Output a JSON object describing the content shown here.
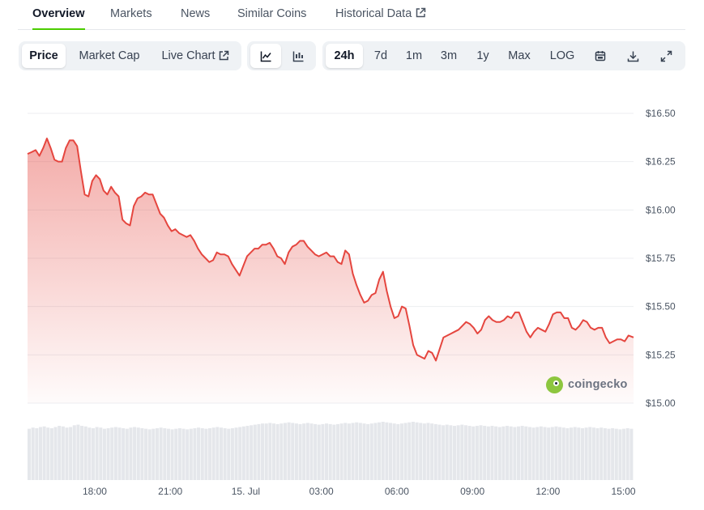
{
  "tabs": [
    {
      "label": "Overview",
      "active": true
    },
    {
      "label": "Markets",
      "active": false
    },
    {
      "label": "News",
      "active": false
    },
    {
      "label": "Similar Coins",
      "active": false
    },
    {
      "label": "Historical Data",
      "active": false,
      "external": true
    }
  ],
  "toolbar": {
    "metric_buttons": [
      "Price",
      "Market Cap",
      "Live Chart"
    ],
    "selected_metric": "Price",
    "chart_style_icons": [
      "line-chart-icon",
      "candlestick-chart-icon"
    ],
    "selected_style": "line-chart-icon",
    "ranges": [
      "24h",
      "7d",
      "1m",
      "3m",
      "1y",
      "Max",
      "LOG"
    ],
    "selected_range": "24h",
    "tool_icons": [
      "calendar-icon",
      "download-icon",
      "fullscreen-icon"
    ]
  },
  "watermark": {
    "text": "coingecko"
  },
  "colors": {
    "line": "#e5463f",
    "accent": "#4bcc00",
    "volume": "#e5e7eb"
  },
  "chart_data": {
    "type": "area",
    "title": "",
    "xlabel": "",
    "ylabel": "",
    "ylim": [
      15.0,
      16.5
    ],
    "yticks": [
      "$16.50",
      "$16.25",
      "$16.00",
      "$15.75",
      "$15.50",
      "$15.25",
      "$15.00"
    ],
    "ytick_values": [
      16.5,
      16.25,
      16.0,
      15.75,
      15.5,
      15.25,
      15.0
    ],
    "xticks": [
      "18:00",
      "21:00",
      "15. Jul",
      "03:00",
      "06:00",
      "09:00",
      "12:00",
      "15:00"
    ],
    "xtick_hours": [
      18,
      21,
      24,
      27,
      30,
      33,
      36,
      39
    ],
    "xlim_hours": [
      15.33,
      39.4
    ],
    "grid": true,
    "series": [
      {
        "x_hours": [
          15.33,
          15.5,
          15.65,
          15.8,
          15.95,
          16.1,
          16.25,
          16.4,
          16.55,
          16.7,
          16.85,
          17.0,
          17.15,
          17.3,
          17.45,
          17.6,
          17.75,
          17.9,
          18.05,
          18.2,
          18.35,
          18.5,
          18.65,
          18.8,
          18.95,
          19.1,
          19.25,
          19.4,
          19.55,
          19.7,
          19.85,
          20.0,
          20.15,
          20.3,
          20.45,
          20.6,
          20.75,
          20.9,
          21.05,
          21.2,
          21.35,
          21.5,
          21.65,
          21.8,
          21.95,
          22.1,
          22.25,
          22.4,
          22.55,
          22.7,
          22.85,
          23.0,
          23.15,
          23.3,
          23.45,
          23.6,
          23.75,
          23.9,
          24.05,
          24.2,
          24.35,
          24.5,
          24.65,
          24.8,
          24.95,
          25.1,
          25.25,
          25.4,
          25.55,
          25.7,
          25.85,
          26.0,
          26.15,
          26.3,
          26.45,
          26.6,
          26.75,
          26.9,
          27.05,
          27.2,
          27.35,
          27.5,
          27.65,
          27.8,
          27.95,
          28.1,
          28.25,
          28.4,
          28.55,
          28.7,
          28.85,
          29.0,
          29.15,
          29.3,
          29.45,
          29.6,
          29.75,
          29.9,
          30.05,
          30.2,
          30.35,
          30.5,
          30.65,
          30.8,
          30.95,
          31.1,
          31.25,
          31.4,
          31.55,
          31.7,
          31.85,
          32.0,
          32.15,
          32.3,
          32.45,
          32.6,
          32.75,
          32.9,
          33.05,
          33.2,
          33.35,
          33.5,
          33.65,
          33.8,
          33.95,
          34.1,
          34.25,
          34.4,
          34.55,
          34.7,
          34.85,
          35.0,
          35.15,
          35.3,
          35.45,
          35.6,
          35.75,
          35.9,
          36.05,
          36.2,
          36.35,
          36.5,
          36.65,
          36.8,
          36.95,
          37.1,
          37.25,
          37.4,
          37.55,
          37.7,
          37.85,
          38.0,
          38.15,
          38.3,
          38.45,
          38.6,
          38.75,
          38.9,
          39.05,
          39.2,
          39.4
        ],
        "values": [
          16.29,
          16.3,
          16.31,
          16.28,
          16.32,
          16.37,
          16.32,
          16.26,
          16.25,
          16.25,
          16.32,
          16.36,
          16.36,
          16.33,
          16.2,
          16.08,
          16.07,
          16.15,
          16.18,
          16.16,
          16.1,
          16.08,
          16.12,
          16.09,
          16.07,
          15.95,
          15.93,
          15.92,
          16.02,
          16.06,
          16.07,
          16.09,
          16.08,
          16.08,
          16.03,
          15.98,
          15.96,
          15.92,
          15.89,
          15.9,
          15.88,
          15.87,
          15.86,
          15.87,
          15.84,
          15.8,
          15.77,
          15.75,
          15.73,
          15.74,
          15.78,
          15.77,
          15.77,
          15.76,
          15.72,
          15.69,
          15.66,
          15.71,
          15.76,
          15.78,
          15.8,
          15.8,
          15.82,
          15.82,
          15.83,
          15.8,
          15.76,
          15.75,
          15.72,
          15.78,
          15.81,
          15.82,
          15.84,
          15.84,
          15.81,
          15.79,
          15.77,
          15.76,
          15.77,
          15.78,
          15.76,
          15.76,
          15.73,
          15.72,
          15.79,
          15.77,
          15.67,
          15.61,
          15.56,
          15.52,
          15.53,
          15.56,
          15.57,
          15.64,
          15.68,
          15.58,
          15.5,
          15.44,
          15.45,
          15.5,
          15.49,
          15.4,
          15.3,
          15.25,
          15.24,
          15.23,
          15.27,
          15.26,
          15.22,
          15.28,
          15.34,
          15.35,
          15.36,
          15.37,
          15.38,
          15.4,
          15.42,
          15.41,
          15.39,
          15.36,
          15.38,
          15.43,
          15.45,
          15.43,
          15.42,
          15.42,
          15.43,
          15.45,
          15.44,
          15.47,
          15.47,
          15.42,
          15.37,
          15.34,
          15.37,
          15.39,
          15.38,
          15.37,
          15.41,
          15.46,
          15.47,
          15.47,
          15.44,
          15.44,
          15.39,
          15.38,
          15.4,
          15.43,
          15.42,
          15.39,
          15.38,
          15.39,
          15.39,
          15.34,
          15.31,
          15.32,
          15.33,
          15.33,
          15.32,
          15.35,
          15.34
        ]
      }
    ],
    "volume_relative": [
      0.88,
      0.9,
      0.89,
      0.91,
      0.92,
      0.9,
      0.89,
      0.91,
      0.93,
      0.92,
      0.9,
      0.91,
      0.94,
      0.95,
      0.93,
      0.92,
      0.9,
      0.89,
      0.91,
      0.9,
      0.88,
      0.89,
      0.9,
      0.91,
      0.9,
      0.89,
      0.88,
      0.9,
      0.91,
      0.9,
      0.89,
      0.88,
      0.87,
      0.88,
      0.89,
      0.9,
      0.89,
      0.88,
      0.87,
      0.88,
      0.89,
      0.88,
      0.87,
      0.88,
      0.89,
      0.9,
      0.89,
      0.88,
      0.89,
      0.9,
      0.91,
      0.9,
      0.89,
      0.88,
      0.89,
      0.9,
      0.91,
      0.92,
      0.93,
      0.94,
      0.95,
      0.96,
      0.97,
      0.97,
      0.98,
      0.97,
      0.96,
      0.97,
      0.98,
      0.99,
      0.98,
      0.97,
      0.96,
      0.97,
      0.98,
      0.97,
      0.96,
      0.95,
      0.96,
      0.97,
      0.96,
      0.95,
      0.96,
      0.97,
      0.98,
      0.97,
      0.98,
      0.99,
      0.98,
      0.97,
      0.96,
      0.97,
      0.98,
      0.99,
      1.0,
      0.99,
      0.98,
      0.97,
      0.96,
      0.97,
      0.98,
      0.99,
      1.0,
      0.99,
      0.98,
      0.97,
      0.98,
      0.97,
      0.96,
      0.95,
      0.94,
      0.95,
      0.94,
      0.93,
      0.94,
      0.95,
      0.94,
      0.93,
      0.92,
      0.93,
      0.94,
      0.93,
      0.92,
      0.93,
      0.92,
      0.91,
      0.92,
      0.93,
      0.92,
      0.91,
      0.92,
      0.93,
      0.92,
      0.91,
      0.9,
      0.91,
      0.92,
      0.91,
      0.9,
      0.91,
      0.92,
      0.91,
      0.9,
      0.89,
      0.9,
      0.91,
      0.9,
      0.89,
      0.9,
      0.91,
      0.9,
      0.89,
      0.9,
      0.89,
      0.88,
      0.89,
      0.88,
      0.87,
      0.88,
      0.89,
      0.88
    ]
  }
}
